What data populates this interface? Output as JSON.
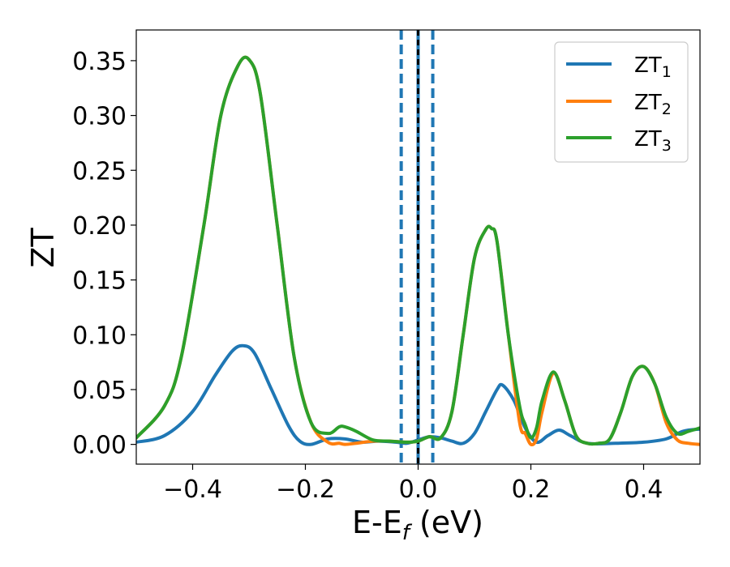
{
  "chart_data": {
    "type": "line",
    "xlabel": "E-E",
    "xlabel_sub": "f",
    "xlabel_unit": " (eV)",
    "ylabel": "ZT",
    "xlim": [
      -0.5,
      0.5
    ],
    "ylim": [
      -0.018,
      0.378
    ],
    "xticks": [
      -0.4,
      -0.2,
      0.0,
      0.2,
      0.4
    ],
    "xtick_labels": [
      "−0.4",
      "−0.2",
      "0.0",
      "0.2",
      "0.4"
    ],
    "yticks": [
      0.0,
      0.05,
      0.1,
      0.15,
      0.2,
      0.25,
      0.3,
      0.35
    ],
    "ytick_labels": [
      "0.00",
      "0.05",
      "0.10",
      "0.15",
      "0.20",
      "0.25",
      "0.30",
      "0.35"
    ],
    "legend_position": "top-right",
    "grid": false,
    "vertical_lines": [
      {
        "x": -0.03,
        "style": "dashed",
        "color": "#1f77b4"
      },
      {
        "x": 0.0,
        "style": "solid",
        "color": "#1f77b4"
      },
      {
        "x": 0.0,
        "style": "dashed",
        "color": "#000000"
      },
      {
        "x": 0.026,
        "style": "dashed",
        "color": "#1f77b4"
      }
    ],
    "series": [
      {
        "name": "ZT",
        "name_sub": "1",
        "color": "#1f77b4",
        "x": [
          -0.5,
          -0.45,
          -0.4,
          -0.36,
          -0.33,
          -0.31,
          -0.29,
          -0.26,
          -0.23,
          -0.21,
          -0.19,
          -0.16,
          -0.13,
          -0.1,
          -0.07,
          -0.04,
          -0.02,
          0.0,
          0.02,
          0.04,
          0.06,
          0.08,
          0.1,
          0.12,
          0.14,
          0.15,
          0.17,
          0.19,
          0.21,
          0.23,
          0.25,
          0.27,
          0.3,
          0.35,
          0.4,
          0.44,
          0.47,
          0.5
        ],
        "y": [
          0.002,
          0.008,
          0.03,
          0.063,
          0.085,
          0.09,
          0.083,
          0.05,
          0.017,
          0.003,
          0.0,
          0.005,
          0.005,
          0.002,
          0.003,
          0.002,
          0.001,
          0.004,
          0.007,
          0.006,
          0.003,
          0.001,
          0.01,
          0.03,
          0.05,
          0.054,
          0.04,
          0.015,
          0.002,
          0.008,
          0.013,
          0.008,
          0.001,
          0.001,
          0.002,
          0.005,
          0.012,
          0.014
        ]
      },
      {
        "name": "ZT",
        "name_sub": "2",
        "color": "#ff7f0e",
        "x": [
          -0.5,
          -0.45,
          -0.42,
          -0.38,
          -0.35,
          -0.32,
          -0.3,
          -0.28,
          -0.25,
          -0.22,
          -0.19,
          -0.16,
          -0.14,
          -0.13,
          -0.11,
          -0.08,
          -0.05,
          -0.02,
          0.0,
          0.02,
          0.04,
          0.06,
          0.08,
          0.1,
          0.12,
          0.13,
          0.14,
          0.16,
          0.18,
          0.19,
          0.2,
          0.21,
          0.22,
          0.24,
          0.26,
          0.28,
          0.3,
          0.32,
          0.34,
          0.36,
          0.38,
          0.4,
          0.42,
          0.44,
          0.46,
          0.48,
          0.5
        ],
        "y": [
          0.006,
          0.035,
          0.08,
          0.2,
          0.3,
          0.345,
          0.351,
          0.32,
          0.2,
          0.08,
          0.02,
          0.002,
          0.001,
          0.0,
          0.001,
          0.003,
          0.003,
          0.002,
          0.003,
          0.007,
          0.006,
          0.03,
          0.1,
          0.17,
          0.196,
          0.197,
          0.185,
          0.1,
          0.02,
          0.01,
          0.0,
          0.005,
          0.03,
          0.065,
          0.04,
          0.008,
          0.001,
          0.001,
          0.005,
          0.03,
          0.062,
          0.071,
          0.055,
          0.02,
          0.004,
          0.001,
          0.0
        ]
      },
      {
        "name": "ZT",
        "name_sub": "3",
        "color": "#2ca02c",
        "x": [
          -0.5,
          -0.45,
          -0.42,
          -0.38,
          -0.35,
          -0.32,
          -0.3,
          -0.28,
          -0.25,
          -0.22,
          -0.19,
          -0.16,
          -0.14,
          -0.13,
          -0.11,
          -0.08,
          -0.05,
          -0.02,
          0.0,
          0.02,
          0.04,
          0.06,
          0.08,
          0.1,
          0.12,
          0.13,
          0.14,
          0.16,
          0.18,
          0.19,
          0.2,
          0.21,
          0.22,
          0.24,
          0.26,
          0.28,
          0.3,
          0.32,
          0.34,
          0.36,
          0.38,
          0.4,
          0.42,
          0.44,
          0.46,
          0.48,
          0.5
        ],
        "y": [
          0.006,
          0.035,
          0.08,
          0.2,
          0.3,
          0.345,
          0.351,
          0.32,
          0.2,
          0.08,
          0.02,
          0.01,
          0.016,
          0.016,
          0.012,
          0.004,
          0.003,
          0.002,
          0.003,
          0.007,
          0.006,
          0.03,
          0.1,
          0.17,
          0.196,
          0.197,
          0.185,
          0.1,
          0.035,
          0.018,
          0.006,
          0.015,
          0.04,
          0.066,
          0.04,
          0.008,
          0.001,
          0.001,
          0.005,
          0.03,
          0.062,
          0.071,
          0.055,
          0.025,
          0.01,
          0.012,
          0.015
        ]
      }
    ]
  }
}
